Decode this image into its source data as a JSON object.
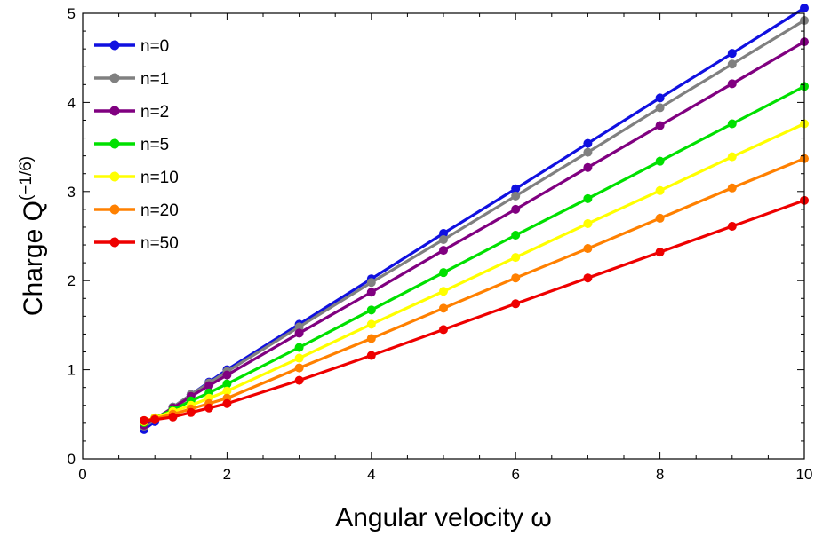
{
  "chart_data": {
    "type": "line",
    "xlabel": "Angular velocity ω",
    "ylabel": "Charge Q",
    "ylabel_superscript": "(−1/6)",
    "xlim": [
      0,
      10
    ],
    "ylim": [
      0,
      5
    ],
    "x_ticks": [
      "0",
      "2",
      "4",
      "6",
      "8",
      "10"
    ],
    "y_ticks": [
      "0",
      "1",
      "2",
      "3",
      "4",
      "5"
    ],
    "grid": false,
    "legend_position": "top-left",
    "x": [
      0.85,
      1,
      1.25,
      1.5,
      1.75,
      2,
      3,
      4,
      5,
      6,
      7,
      8,
      9,
      10
    ],
    "series": [
      {
        "name": "n=0",
        "color": "#1010e0",
        "values": [
          0.33,
          0.42,
          0.58,
          0.72,
          0.86,
          1.0,
          1.51,
          2.02,
          2.53,
          3.03,
          3.54,
          4.05,
          4.55,
          5.06
        ]
      },
      {
        "name": "n=1",
        "color": "#808080",
        "values": [
          0.36,
          0.44,
          0.58,
          0.72,
          0.85,
          0.98,
          1.48,
          1.98,
          2.46,
          2.95,
          3.44,
          3.94,
          4.43,
          4.92
        ]
      },
      {
        "name": "n=2",
        "color": "#800080",
        "values": [
          0.38,
          0.45,
          0.57,
          0.7,
          0.82,
          0.94,
          1.41,
          1.87,
          2.34,
          2.8,
          3.27,
          3.74,
          4.21,
          4.68
        ]
      },
      {
        "name": "n=5",
        "color": "#00e000",
        "values": [
          0.41,
          0.46,
          0.55,
          0.65,
          0.74,
          0.84,
          1.25,
          1.67,
          2.09,
          2.51,
          2.92,
          3.34,
          3.76,
          4.18
        ]
      },
      {
        "name": "n=10",
        "color": "#ffff00",
        "values": [
          0.42,
          0.46,
          0.53,
          0.6,
          0.68,
          0.76,
          1.13,
          1.51,
          1.88,
          2.26,
          2.64,
          3.01,
          3.39,
          3.76
        ]
      },
      {
        "name": "n=20",
        "color": "#ff8000",
        "values": [
          0.43,
          0.45,
          0.5,
          0.56,
          0.62,
          0.68,
          1.02,
          1.35,
          1.69,
          2.03,
          2.36,
          2.7,
          3.04,
          3.37
        ]
      },
      {
        "name": "n=50",
        "color": "#ee0000",
        "values": [
          0.43,
          0.44,
          0.47,
          0.52,
          0.57,
          0.62,
          0.88,
          1.16,
          1.45,
          1.74,
          2.03,
          2.32,
          2.61,
          2.9
        ]
      }
    ]
  }
}
